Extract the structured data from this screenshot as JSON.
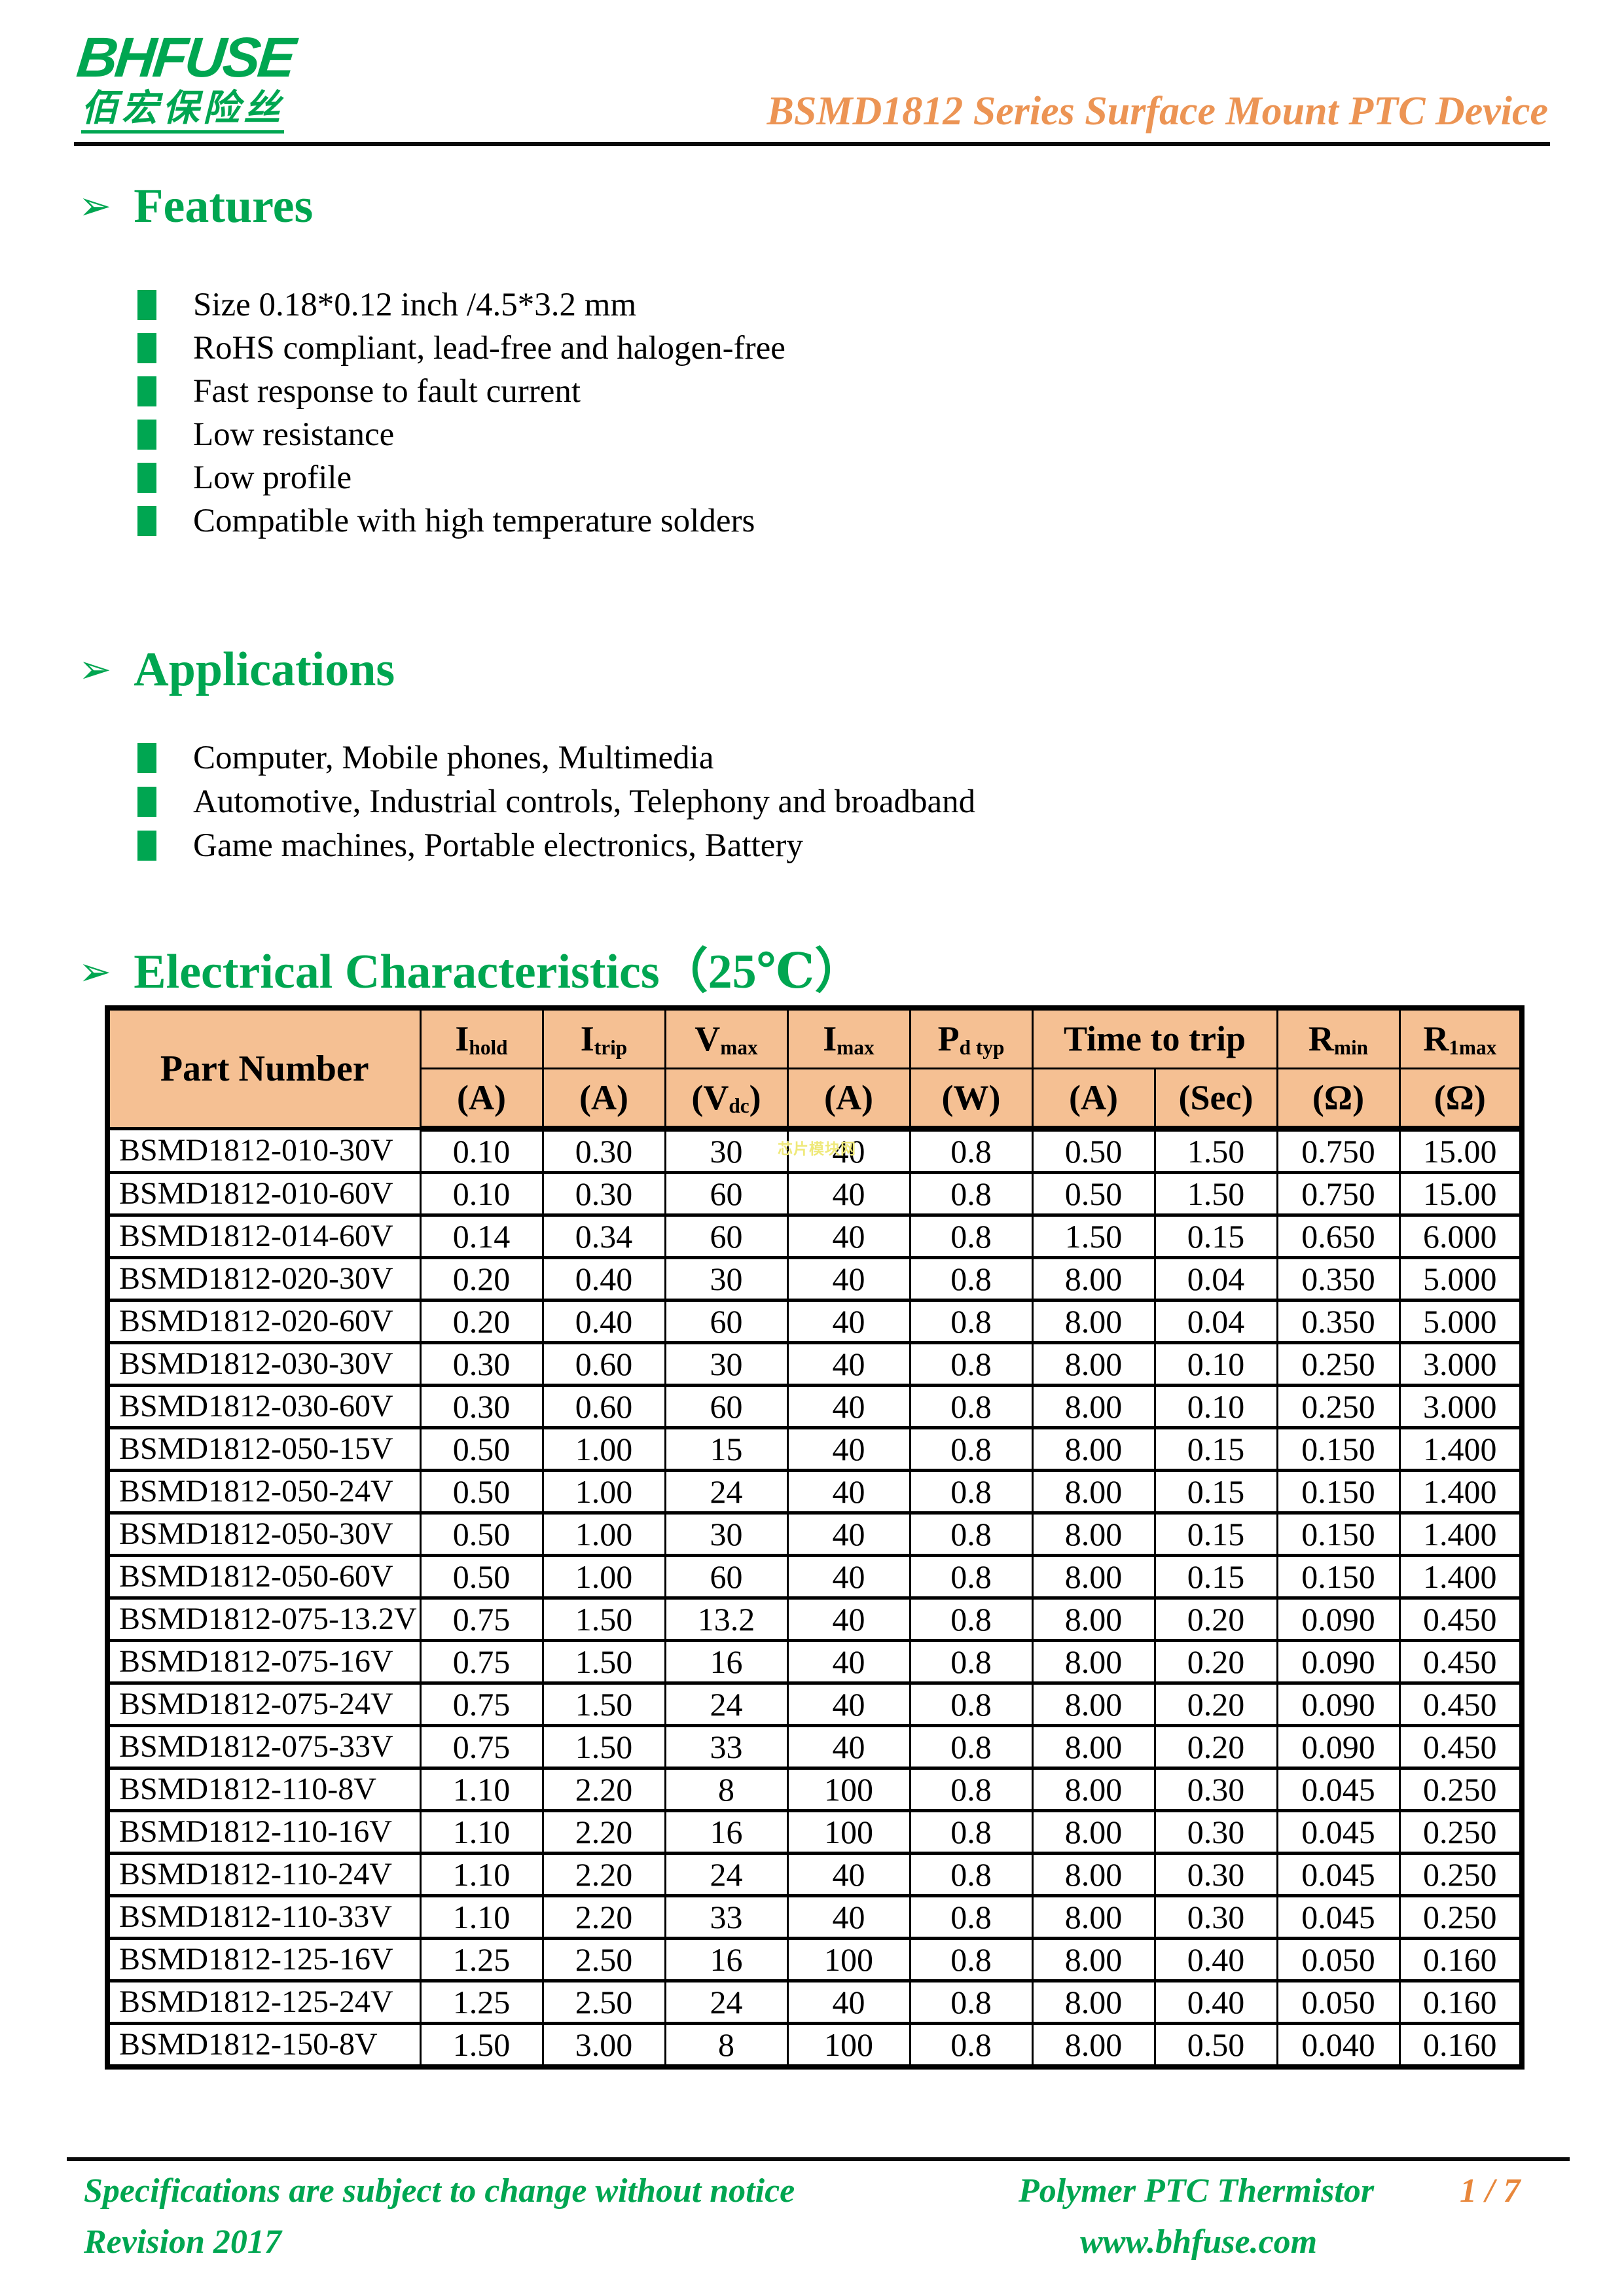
{
  "header": {
    "logo_text": "BHFUSE",
    "logo_subtext": "佰宏保险丝",
    "doc_title": "BSMD1812 Series Surface Mount PTC Device"
  },
  "sections": {
    "features": {
      "arrow": "➢",
      "heading": "Features",
      "items": [
        "Size 0.18*0.12 inch /4.5*3.2 mm",
        "RoHS compliant, lead-free and halogen-free",
        "Fast response to fault current",
        "Low resistance",
        "Low profile",
        "Compatible with high temperature solders"
      ]
    },
    "applications": {
      "arrow": "➢",
      "heading": "Applications",
      "items": [
        "Computer, Mobile phones, Multimedia",
        "Automotive, Industrial controls, Telephony and broadband",
        "Game machines, Portable electronics, Battery"
      ]
    },
    "electrical": {
      "arrow": "➢",
      "heading": "Electrical Characteristics（25℃）"
    }
  },
  "table": {
    "part_number_label": "Part Number",
    "time_to_trip_label": "Time to trip",
    "columns": [
      {
        "main": "I",
        "sub": "hold",
        "unit": "(A)"
      },
      {
        "main": "I",
        "sub": "trip",
        "unit": "(A)"
      },
      {
        "main": "V",
        "sub": "max",
        "unit_pre": "(V",
        "unit_sub": "dc",
        "unit_post": ")"
      },
      {
        "main": "I",
        "sub": "max",
        "unit": "(A)"
      },
      {
        "main": "P",
        "sub": "d typ",
        "unit": "(W)"
      },
      {
        "main": "R",
        "sub": "min",
        "unit": "(Ω)"
      },
      {
        "main": "R",
        "sub": "1max",
        "unit": "(Ω)"
      }
    ],
    "time_to_trip_units": [
      "(A)",
      "(Sec)"
    ],
    "rows": [
      [
        "BSMD1812-010-30V",
        "0.10",
        "0.30",
        "30",
        "40",
        "0.8",
        "0.50",
        "1.50",
        "0.750",
        "15.00"
      ],
      [
        "BSMD1812-010-60V",
        "0.10",
        "0.30",
        "60",
        "40",
        "0.8",
        "0.50",
        "1.50",
        "0.750",
        "15.00"
      ],
      [
        "BSMD1812-014-60V",
        "0.14",
        "0.34",
        "60",
        "40",
        "0.8",
        "1.50",
        "0.15",
        "0.650",
        "6.000"
      ],
      [
        "BSMD1812-020-30V",
        "0.20",
        "0.40",
        "30",
        "40",
        "0.8",
        "8.00",
        "0.04",
        "0.350",
        "5.000"
      ],
      [
        "BSMD1812-020-60V",
        "0.20",
        "0.40",
        "60",
        "40",
        "0.8",
        "8.00",
        "0.04",
        "0.350",
        "5.000"
      ],
      [
        "BSMD1812-030-30V",
        "0.30",
        "0.60",
        "30",
        "40",
        "0.8",
        "8.00",
        "0.10",
        "0.250",
        "3.000"
      ],
      [
        "BSMD1812-030-60V",
        "0.30",
        "0.60",
        "60",
        "40",
        "0.8",
        "8.00",
        "0.10",
        "0.250",
        "3.000"
      ],
      [
        "BSMD1812-050-15V",
        "0.50",
        "1.00",
        "15",
        "40",
        "0.8",
        "8.00",
        "0.15",
        "0.150",
        "1.400"
      ],
      [
        "BSMD1812-050-24V",
        "0.50",
        "1.00",
        "24",
        "40",
        "0.8",
        "8.00",
        "0.15",
        "0.150",
        "1.400"
      ],
      [
        "BSMD1812-050-30V",
        "0.50",
        "1.00",
        "30",
        "40",
        "0.8",
        "8.00",
        "0.15",
        "0.150",
        "1.400"
      ],
      [
        "BSMD1812-050-60V",
        "0.50",
        "1.00",
        "60",
        "40",
        "0.8",
        "8.00",
        "0.15",
        "0.150",
        "1.400"
      ],
      [
        "BSMD1812-075-13.2V",
        "0.75",
        "1.50",
        "13.2",
        "40",
        "0.8",
        "8.00",
        "0.20",
        "0.090",
        "0.450"
      ],
      [
        "BSMD1812-075-16V",
        "0.75",
        "1.50",
        "16",
        "40",
        "0.8",
        "8.00",
        "0.20",
        "0.090",
        "0.450"
      ],
      [
        "BSMD1812-075-24V",
        "0.75",
        "1.50",
        "24",
        "40",
        "0.8",
        "8.00",
        "0.20",
        "0.090",
        "0.450"
      ],
      [
        "BSMD1812-075-33V",
        "0.75",
        "1.50",
        "33",
        "40",
        "0.8",
        "8.00",
        "0.20",
        "0.090",
        "0.450"
      ],
      [
        "BSMD1812-110-8V",
        "1.10",
        "2.20",
        "8",
        "100",
        "0.8",
        "8.00",
        "0.30",
        "0.045",
        "0.250"
      ],
      [
        "BSMD1812-110-16V",
        "1.10",
        "2.20",
        "16",
        "100",
        "0.8",
        "8.00",
        "0.30",
        "0.045",
        "0.250"
      ],
      [
        "BSMD1812-110-24V",
        "1.10",
        "2.20",
        "24",
        "40",
        "0.8",
        "8.00",
        "0.30",
        "0.045",
        "0.250"
      ],
      [
        "BSMD1812-110-33V",
        "1.10",
        "2.20",
        "33",
        "40",
        "0.8",
        "8.00",
        "0.30",
        "0.045",
        "0.250"
      ],
      [
        "BSMD1812-125-16V",
        "1.25",
        "2.50",
        "16",
        "100",
        "0.8",
        "8.00",
        "0.40",
        "0.050",
        "0.160"
      ],
      [
        "BSMD1812-125-24V",
        "1.25",
        "2.50",
        "24",
        "40",
        "0.8",
        "8.00",
        "0.40",
        "0.050",
        "0.160"
      ],
      [
        "BSMD1812-150-8V",
        "1.50",
        "3.00",
        "8",
        "100",
        "0.8",
        "8.00",
        "0.50",
        "0.040",
        "0.160"
      ]
    ]
  },
  "watermark": "芯片模块网",
  "footer": {
    "left_line1": "Specifications are subject to change without notice",
    "left_line2": "Revision 2017",
    "center_line1": "Polymer PTC Thermistor",
    "center_line2": "www.bhfuse.com",
    "page_number": "1 / 7"
  },
  "colors": {
    "brand_green": "#00A651",
    "title_orange": "#EC9454",
    "page_number_orange": "#E8873B",
    "table_header_bg": "#F5C093",
    "watermark_yellow": "#EFE97A"
  }
}
